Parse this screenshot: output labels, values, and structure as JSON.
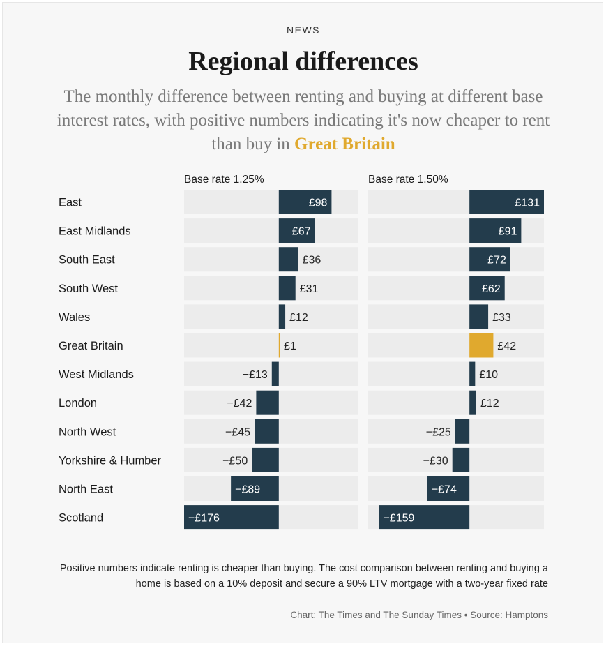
{
  "header": {
    "kicker": "NEWS",
    "title": "Regional differences",
    "subtitle_pre": "The monthly difference between renting and buying at different base interest rates, with positive numbers indicating it's now cheaper to rent than buy in ",
    "subtitle_highlight": "Great Britain"
  },
  "colors": {
    "bar": "#233c4c",
    "highlight": "#e0a92e",
    "track": "#ececec",
    "label_inside": "#ffffff",
    "label_outside": "#222222"
  },
  "chart_data": {
    "type": "bar",
    "orientation": "horizontal",
    "title": "Regional differences",
    "categories": [
      "East",
      "East Midlands",
      "South East",
      "South West",
      "Wales",
      "Great Britain",
      "West Midlands",
      "London",
      "North West",
      "Yorkshire & Humber",
      "North East",
      "Scotland"
    ],
    "highlight_category": "Great Britain",
    "series": [
      {
        "name": "Base rate 1.25%",
        "values": [
          98,
          67,
          36,
          31,
          12,
          1,
          -13,
          -42,
          -45,
          -50,
          -89,
          -176
        ],
        "labels": [
          "£98",
          "£67",
          "£36",
          "£31",
          "£12",
          "£1",
          "−£13",
          "−£42",
          "−£45",
          "−£50",
          "−£89",
          "−£176"
        ],
        "xlim": [
          -176,
          148
        ]
      },
      {
        "name": "Base rate 1.50%",
        "values": [
          131,
          91,
          72,
          62,
          33,
          42,
          10,
          12,
          -25,
          -30,
          -74,
          -159
        ],
        "labels": [
          "£131",
          "£91",
          "£72",
          "£62",
          "£33",
          "£42",
          "£10",
          "£12",
          "−£25",
          "−£30",
          "−£74",
          "−£159"
        ],
        "xlim": [
          -178,
          131
        ]
      }
    ]
  },
  "footer": {
    "note": "Positive numbers indicate renting is cheaper than buying. The cost comparison between renting and buying a home is based on a 10% deposit and secure a 90% LTV mortgage with a two-year fixed rate",
    "source": "Chart: The Times and The Sunday Times • Source: Hamptons"
  }
}
